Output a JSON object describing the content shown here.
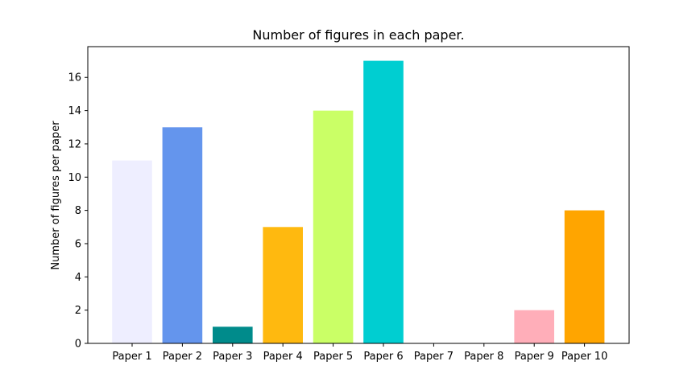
{
  "chart_data": {
    "type": "bar",
    "title": "Number of figures in each paper.",
    "xlabel": "",
    "ylabel": "Number of figures per paper",
    "categories": [
      "Paper 1",
      "Paper 2",
      "Paper 3",
      "Paper 4",
      "Paper 5",
      "Paper 6",
      "Paper 7",
      "Paper 8",
      "Paper 9",
      "Paper 10"
    ],
    "values": [
      11,
      13,
      1,
      7,
      14,
      17,
      0,
      0,
      2,
      8
    ],
    "colors": [
      "#EEEEFF",
      "#6495ED",
      "#008B8B",
      "#FFB90F",
      "#CAFF66",
      "#00CED1",
      "#FFFFFF",
      "#FFFFFF",
      "#FFAEB9",
      "#FFA500"
    ],
    "ylim": [
      0,
      17.85
    ],
    "yticks": [
      0,
      2,
      4,
      6,
      8,
      10,
      12,
      14,
      16
    ],
    "grid": false,
    "legend": "none"
  }
}
